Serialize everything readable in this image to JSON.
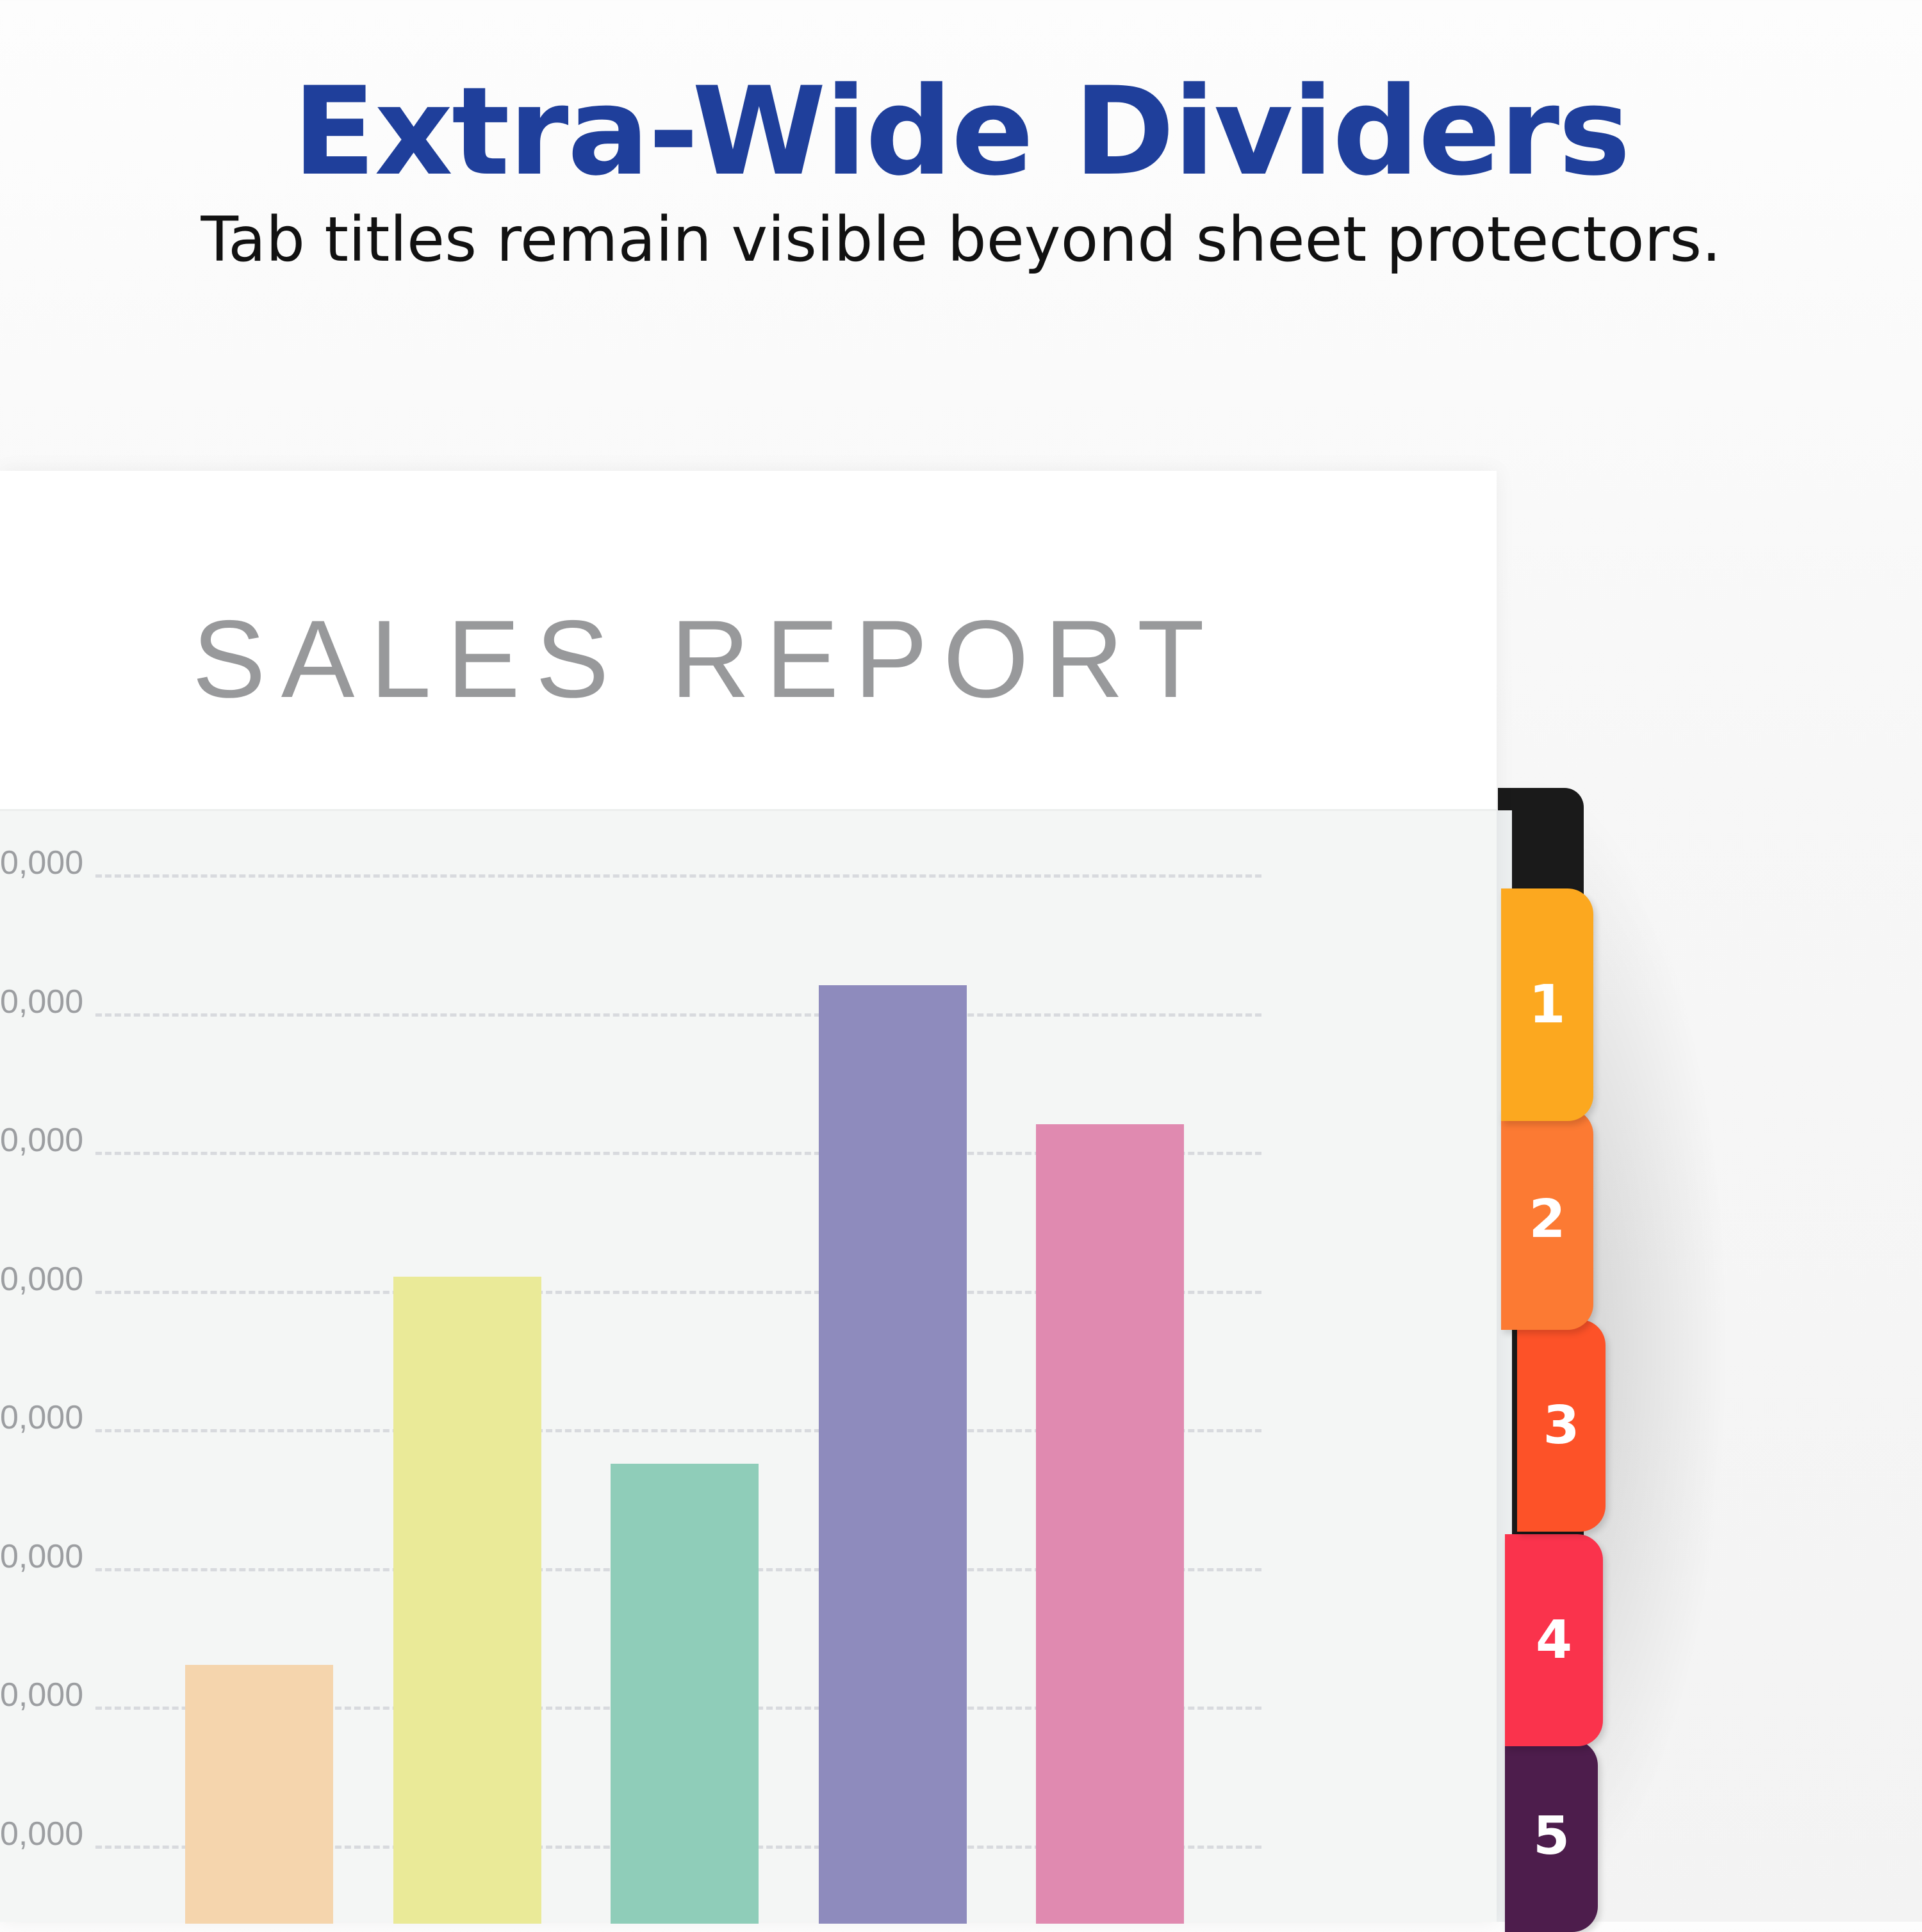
{
  "headline": "Extra-Wide Dividers",
  "subline": "Tab titles remain visible beyond sheet protectors.",
  "report": {
    "title": "SALES REPORT"
  },
  "chart_data": {
    "type": "bar",
    "title": "SALES REPORT",
    "tick_labels": [
      "0,000",
      "0,000",
      "0,000",
      "0,000",
      "0,000",
      "0,000",
      "0,000",
      "0,000"
    ],
    "grid": true,
    "values": [
      1.3,
      4.1,
      2.75,
      6.2,
      5.2
    ],
    "colors": [
      "#f5d5ad",
      "#eaea98",
      "#8fcdb9",
      "#8e8bbd",
      "#e08ab0"
    ]
  },
  "tabs": [
    {
      "label": "1",
      "color": "#fca81f"
    },
    {
      "label": "2",
      "color": "#fc7a33"
    },
    {
      "label": "3",
      "color": "#fd5228"
    },
    {
      "label": "4",
      "color": "#fa334c"
    },
    {
      "label": "5",
      "color": "#4d1d4c"
    }
  ]
}
